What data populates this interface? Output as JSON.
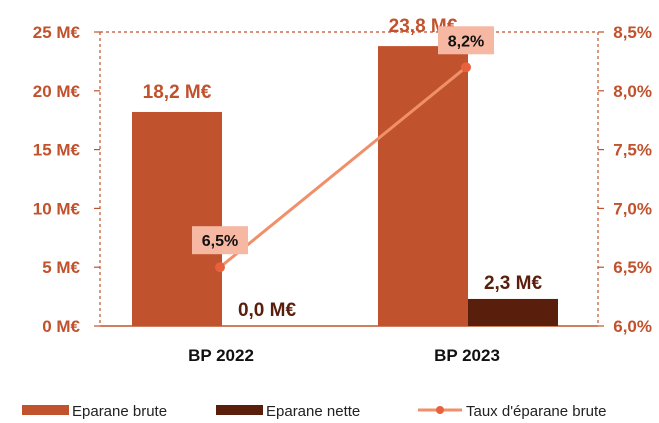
{
  "chart_data": {
    "type": "bar",
    "categories": [
      "BP 2022",
      "BP 2023"
    ],
    "series": [
      {
        "name": "Eparane brute",
        "values": [
          18.2,
          23.8
        ],
        "labels": [
          "18,2 M€",
          "23,8 M€"
        ],
        "color": "#c0522d",
        "axis": "left"
      },
      {
        "name": "Eparane nette",
        "values": [
          0.0,
          2.3
        ],
        "labels": [
          "0,0 M€",
          "2,3 M€"
        ],
        "color": "#5a1e0c",
        "axis": "left"
      },
      {
        "name": "Taux d'éparane brute",
        "type": "line",
        "values": [
          6.5,
          8.2
        ],
        "labels": [
          "6,5%",
          "8,2%"
        ],
        "color": "#f0906a",
        "axis": "right"
      }
    ],
    "y_left": {
      "ticks": [
        0,
        5,
        10,
        15,
        20,
        25
      ],
      "tick_labels": [
        "0 M€",
        "5 M€",
        "10 M€",
        "15 M€",
        "20 M€",
        "25 M€"
      ],
      "ylim": [
        0,
        25
      ]
    },
    "y_right": {
      "ticks": [
        6.0,
        6.5,
        7.0,
        7.5,
        8.0,
        8.5
      ],
      "tick_labels": [
        "6,0%",
        "6,5%",
        "7,0%",
        "7,5%",
        "8,0%",
        "8,5%"
      ],
      "ylim": [
        6.0,
        8.5
      ]
    },
    "legend_position": "bottom",
    "grid": false
  }
}
